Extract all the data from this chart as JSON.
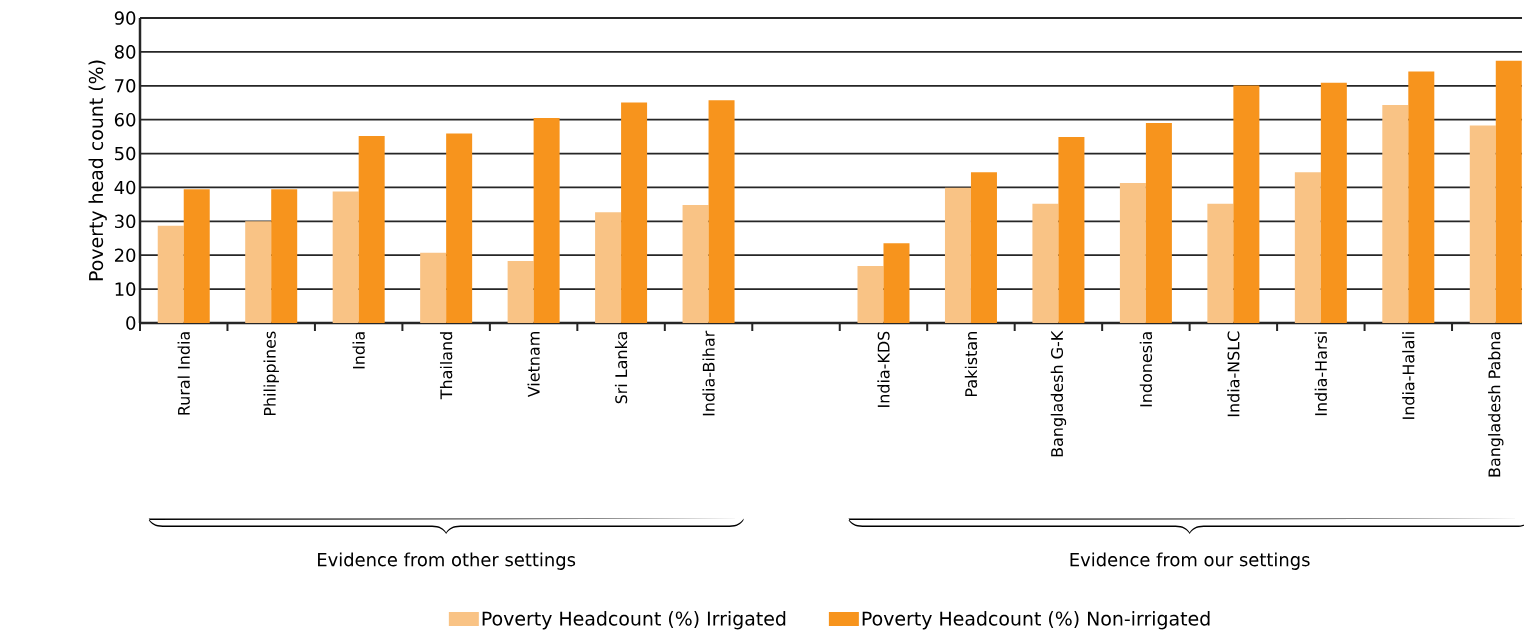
{
  "chart_data": {
    "type": "bar",
    "ylabel": "Poverty head count (%)",
    "categories": [
      "Rural India",
      "Philippines",
      "India",
      "Thailand",
      "Vietnam",
      "Sri Lanka",
      "India-Bihar",
      null,
      "India-KDS",
      "Pakistan",
      "Bangladesh  G-K",
      "Indonesia",
      "India-NSLC",
      "India-Harsi",
      "India-Halali",
      "Bangladesh Pabna"
    ],
    "series": [
      {
        "name": "Poverty Headcount (%) Irrigated",
        "color": "#f9c385",
        "values": [
          28.7,
          30,
          38.8,
          20.7,
          18.3,
          32.7,
          34.8,
          null,
          16.8,
          39.9,
          35.2,
          41.3,
          35.2,
          44.5,
          64.3,
          58.3
        ]
      },
      {
        "name": "Poverty Headcount (%) Non-irrigated",
        "color": "#f7941d",
        "values": [
          39.5,
          39.5,
          55.2,
          55.9,
          60.5,
          65.1,
          65.7,
          null,
          23.5,
          44.5,
          54.9,
          59,
          70.1,
          70.9,
          74.2,
          77.4
        ]
      }
    ],
    "ylim": [
      0,
      90
    ],
    "yticks": [
      0,
      10,
      20,
      30,
      40,
      50,
      60,
      70,
      80,
      90
    ],
    "grid": "y",
    "legend": "bottom",
    "annotations": [
      "Evidence from other settings",
      "Evidence from our settings"
    ]
  }
}
